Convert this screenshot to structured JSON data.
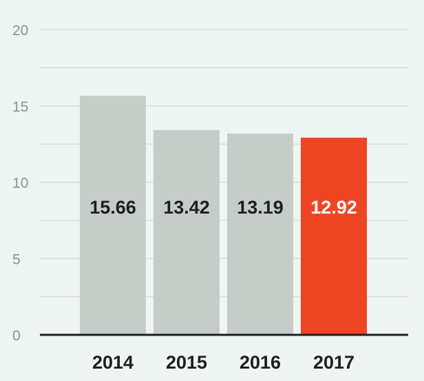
{
  "chart_data": {
    "type": "bar",
    "categories": [
      "2014",
      "2015",
      "2016",
      "2017"
    ],
    "values": [
      15.66,
      13.42,
      13.19,
      12.92
    ],
    "value_labels": [
      "15.66",
      "13.42",
      "13.19",
      "12.92"
    ],
    "ylim": [
      0,
      20
    ],
    "y_ticks": [
      0,
      5,
      10,
      15,
      20
    ],
    "y_tick_labels": [
      "0",
      "5",
      "10",
      "15",
      "20"
    ],
    "minor_gridlines": [
      2.5,
      7.5,
      12.5,
      17.5
    ],
    "grid": true,
    "highlight_index": 3,
    "colors": {
      "background": "#eef5f3",
      "bar": "#c5cdc8",
      "highlight_bar": "#ef4524",
      "gridline": "#d6dcd9",
      "baseline": "#1f1f1f",
      "label_dark": "#1f1f1f",
      "label_light": "#ffffff",
      "tick_text": "#8a9691"
    }
  }
}
